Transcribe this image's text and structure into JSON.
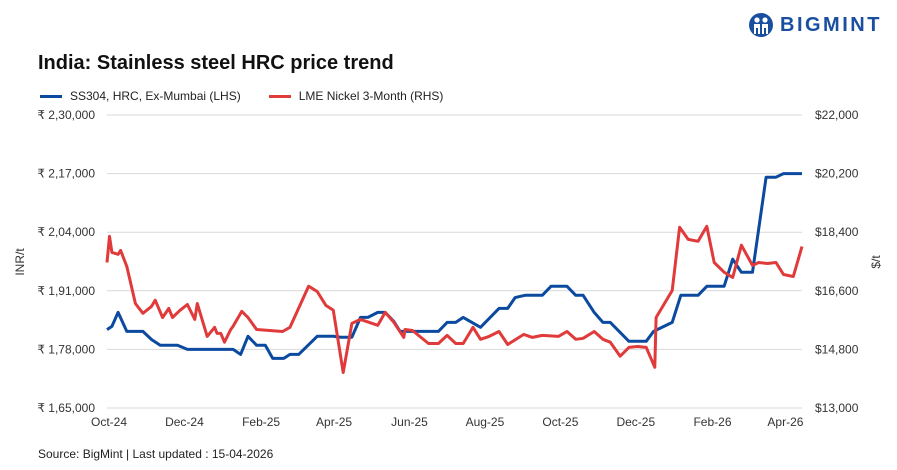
{
  "brand": {
    "name": "BIGMINT",
    "color": "#1a4fa0"
  },
  "source": "Source: BigMint | Last updated : 15-04-2026",
  "chart_data": {
    "type": "line",
    "title": "India: Stainless steel HRC price trend",
    "ylabel_left": "INR/t",
    "ylabel_right": "$/t",
    "ylim_left": [
      165000,
      230000
    ],
    "ylim_right": [
      13000,
      22000
    ],
    "yticks_left": [
      "₹ 1,65,000",
      "₹ 1,78,000",
      "₹ 1,91,000",
      "₹ 2,04,000",
      "₹ 2,17,000",
      "₹ 2,30,000"
    ],
    "yticks_left_values": [
      165000,
      178000,
      191000,
      204000,
      217000,
      230000
    ],
    "yticks_right": [
      "$13,000",
      "$14,800",
      "$16,600",
      "$18,400",
      "$20,200",
      "$22,000"
    ],
    "yticks_right_values": [
      13000,
      14800,
      16600,
      18400,
      20200,
      22000
    ],
    "xlim": [
      "2024-10-01",
      "2026-04-16"
    ],
    "xticks": [
      {
        "label": "Oct-24",
        "date": "2024-10-01"
      },
      {
        "label": "Dec-24",
        "date": "2024-12-01"
      },
      {
        "label": "Feb-25",
        "date": "2025-02-01"
      },
      {
        "label": "Apr-25",
        "date": "2025-04-01"
      },
      {
        "label": "Jun-25",
        "date": "2025-06-01"
      },
      {
        "label": "Aug-25",
        "date": "2025-08-01"
      },
      {
        "label": "Oct-25",
        "date": "2025-10-01"
      },
      {
        "label": "Dec-25",
        "date": "2025-12-01"
      },
      {
        "label": "Feb-26",
        "date": "2026-02-01"
      },
      {
        "label": "Apr-26",
        "date": "2026-04-01"
      }
    ],
    "grid": true,
    "legend_position": "top-left",
    "series": [
      {
        "name": "SS304, HRC, Ex-Mumbai (LHS)",
        "axis": "left",
        "color": "#0b4a9e",
        "points": [
          [
            "2024-10-01",
            182400
          ],
          [
            "2024-10-05",
            183100
          ],
          [
            "2024-10-10",
            186200
          ],
          [
            "2024-10-17",
            182000
          ],
          [
            "2024-10-30",
            182000
          ],
          [
            "2024-11-06",
            180200
          ],
          [
            "2024-11-13",
            178900
          ],
          [
            "2024-11-27",
            178900
          ],
          [
            "2024-12-05",
            178000
          ],
          [
            "2025-01-11",
            178000
          ],
          [
            "2025-01-17",
            176900
          ],
          [
            "2025-01-23",
            180900
          ],
          [
            "2025-01-30",
            178900
          ],
          [
            "2025-02-06",
            178900
          ],
          [
            "2025-02-12",
            176000
          ],
          [
            "2025-02-21",
            176000
          ],
          [
            "2025-02-26",
            176900
          ],
          [
            "2025-03-05",
            176900
          ],
          [
            "2025-03-20",
            180900
          ],
          [
            "2025-04-02",
            180900
          ],
          [
            "2025-04-08",
            180700
          ],
          [
            "2025-04-17",
            180700
          ],
          [
            "2025-04-24",
            185100
          ],
          [
            "2025-04-30",
            185100
          ],
          [
            "2025-05-08",
            186200
          ],
          [
            "2025-05-14",
            186200
          ],
          [
            "2025-05-21",
            184200
          ],
          [
            "2025-05-26",
            182000
          ],
          [
            "2025-06-26",
            182000
          ],
          [
            "2025-07-03",
            184000
          ],
          [
            "2025-07-10",
            184000
          ],
          [
            "2025-07-16",
            185100
          ],
          [
            "2025-07-30",
            182900
          ],
          [
            "2025-08-14",
            187100
          ],
          [
            "2025-08-21",
            187100
          ],
          [
            "2025-08-27",
            189500
          ],
          [
            "2025-09-04",
            190000
          ],
          [
            "2025-09-18",
            190000
          ],
          [
            "2025-09-25",
            192000
          ],
          [
            "2025-10-08",
            192000
          ],
          [
            "2025-10-15",
            190000
          ],
          [
            "2025-10-21",
            190000
          ],
          [
            "2025-10-30",
            186200
          ],
          [
            "2025-11-06",
            184000
          ],
          [
            "2025-11-12",
            184000
          ],
          [
            "2025-11-27",
            179800
          ],
          [
            "2025-12-11",
            179800
          ],
          [
            "2025-12-17",
            182000
          ],
          [
            "2026-01-01",
            184000
          ],
          [
            "2026-01-08",
            190000
          ],
          [
            "2026-01-22",
            190000
          ],
          [
            "2026-01-29",
            192000
          ],
          [
            "2026-02-12",
            192000
          ],
          [
            "2026-02-19",
            198000
          ],
          [
            "2026-02-26",
            195100
          ],
          [
            "2026-03-07",
            195100
          ],
          [
            "2026-03-18",
            216200
          ],
          [
            "2026-03-26",
            216200
          ],
          [
            "2026-04-01",
            217000
          ],
          [
            "2026-04-16",
            217000
          ]
        ]
      },
      {
        "name": "LME Nickel 3-Month (RHS)",
        "axis": "right",
        "color": "#e03a3a",
        "points": [
          [
            "2024-10-01",
            17470
          ],
          [
            "2024-10-03",
            18270
          ],
          [
            "2024-10-05",
            17780
          ],
          [
            "2024-10-10",
            17720
          ],
          [
            "2024-10-12",
            17840
          ],
          [
            "2024-10-17",
            17350
          ],
          [
            "2024-10-24",
            16210
          ],
          [
            "2024-10-30",
            15910
          ],
          [
            "2024-11-06",
            16120
          ],
          [
            "2024-11-09",
            16310
          ],
          [
            "2024-11-15",
            15780
          ],
          [
            "2024-11-20",
            16060
          ],
          [
            "2024-11-23",
            15780
          ],
          [
            "2024-11-29",
            16000
          ],
          [
            "2024-12-05",
            16180
          ],
          [
            "2024-12-11",
            15720
          ],
          [
            "2024-12-13",
            16210
          ],
          [
            "2024-12-21",
            15200
          ],
          [
            "2024-12-27",
            15480
          ],
          [
            "2024-12-29",
            15290
          ],
          [
            "2025-01-01",
            15290
          ],
          [
            "2025-01-04",
            15020
          ],
          [
            "2025-01-09",
            15410
          ],
          [
            "2025-01-11",
            15510
          ],
          [
            "2025-01-18",
            15970
          ],
          [
            "2025-01-23",
            15780
          ],
          [
            "2025-01-30",
            15410
          ],
          [
            "2025-02-20",
            15350
          ],
          [
            "2025-02-26",
            15480
          ],
          [
            "2025-03-13",
            16740
          ],
          [
            "2025-03-20",
            16580
          ],
          [
            "2025-03-27",
            16150
          ],
          [
            "2025-04-02",
            16000
          ],
          [
            "2025-04-10",
            14090
          ],
          [
            "2025-04-17",
            15600
          ],
          [
            "2025-04-24",
            15720
          ],
          [
            "2025-05-08",
            15540
          ],
          [
            "2025-05-14",
            15940
          ],
          [
            "2025-05-21",
            15630
          ],
          [
            "2025-05-29",
            15170
          ],
          [
            "2025-05-30",
            15410
          ],
          [
            "2025-06-05",
            15380
          ],
          [
            "2025-06-18",
            14980
          ],
          [
            "2025-06-26",
            14980
          ],
          [
            "2025-07-03",
            15230
          ],
          [
            "2025-07-10",
            14980
          ],
          [
            "2025-07-16",
            14980
          ],
          [
            "2025-07-24",
            15480
          ],
          [
            "2025-07-30",
            15110
          ],
          [
            "2025-08-06",
            15200
          ],
          [
            "2025-08-14",
            15350
          ],
          [
            "2025-08-21",
            14950
          ],
          [
            "2025-09-03",
            15260
          ],
          [
            "2025-09-10",
            15170
          ],
          [
            "2025-09-18",
            15230
          ],
          [
            "2025-10-01",
            15200
          ],
          [
            "2025-10-08",
            15350
          ],
          [
            "2025-10-15",
            15110
          ],
          [
            "2025-10-21",
            15140
          ],
          [
            "2025-10-30",
            15350
          ],
          [
            "2025-11-06",
            15110
          ],
          [
            "2025-11-12",
            15020
          ],
          [
            "2025-11-20",
            14590
          ],
          [
            "2025-11-27",
            14860
          ],
          [
            "2025-12-04",
            14890
          ],
          [
            "2025-12-11",
            14860
          ],
          [
            "2025-12-18",
            14250
          ],
          [
            "2025-12-19",
            15780
          ],
          [
            "2026-01-01",
            16610
          ],
          [
            "2026-01-07",
            18550
          ],
          [
            "2026-01-14",
            18180
          ],
          [
            "2026-01-22",
            18120
          ],
          [
            "2026-01-29",
            18580
          ],
          [
            "2026-02-04",
            17470
          ],
          [
            "2026-02-12",
            17170
          ],
          [
            "2026-02-19",
            17010
          ],
          [
            "2026-02-26",
            18000
          ],
          [
            "2026-03-07",
            17380
          ],
          [
            "2026-03-12",
            17470
          ],
          [
            "2026-03-19",
            17440
          ],
          [
            "2026-03-26",
            17470
          ],
          [
            "2026-04-01",
            17100
          ],
          [
            "2026-04-09",
            17040
          ],
          [
            "2026-04-16",
            17960
          ]
        ]
      }
    ]
  }
}
